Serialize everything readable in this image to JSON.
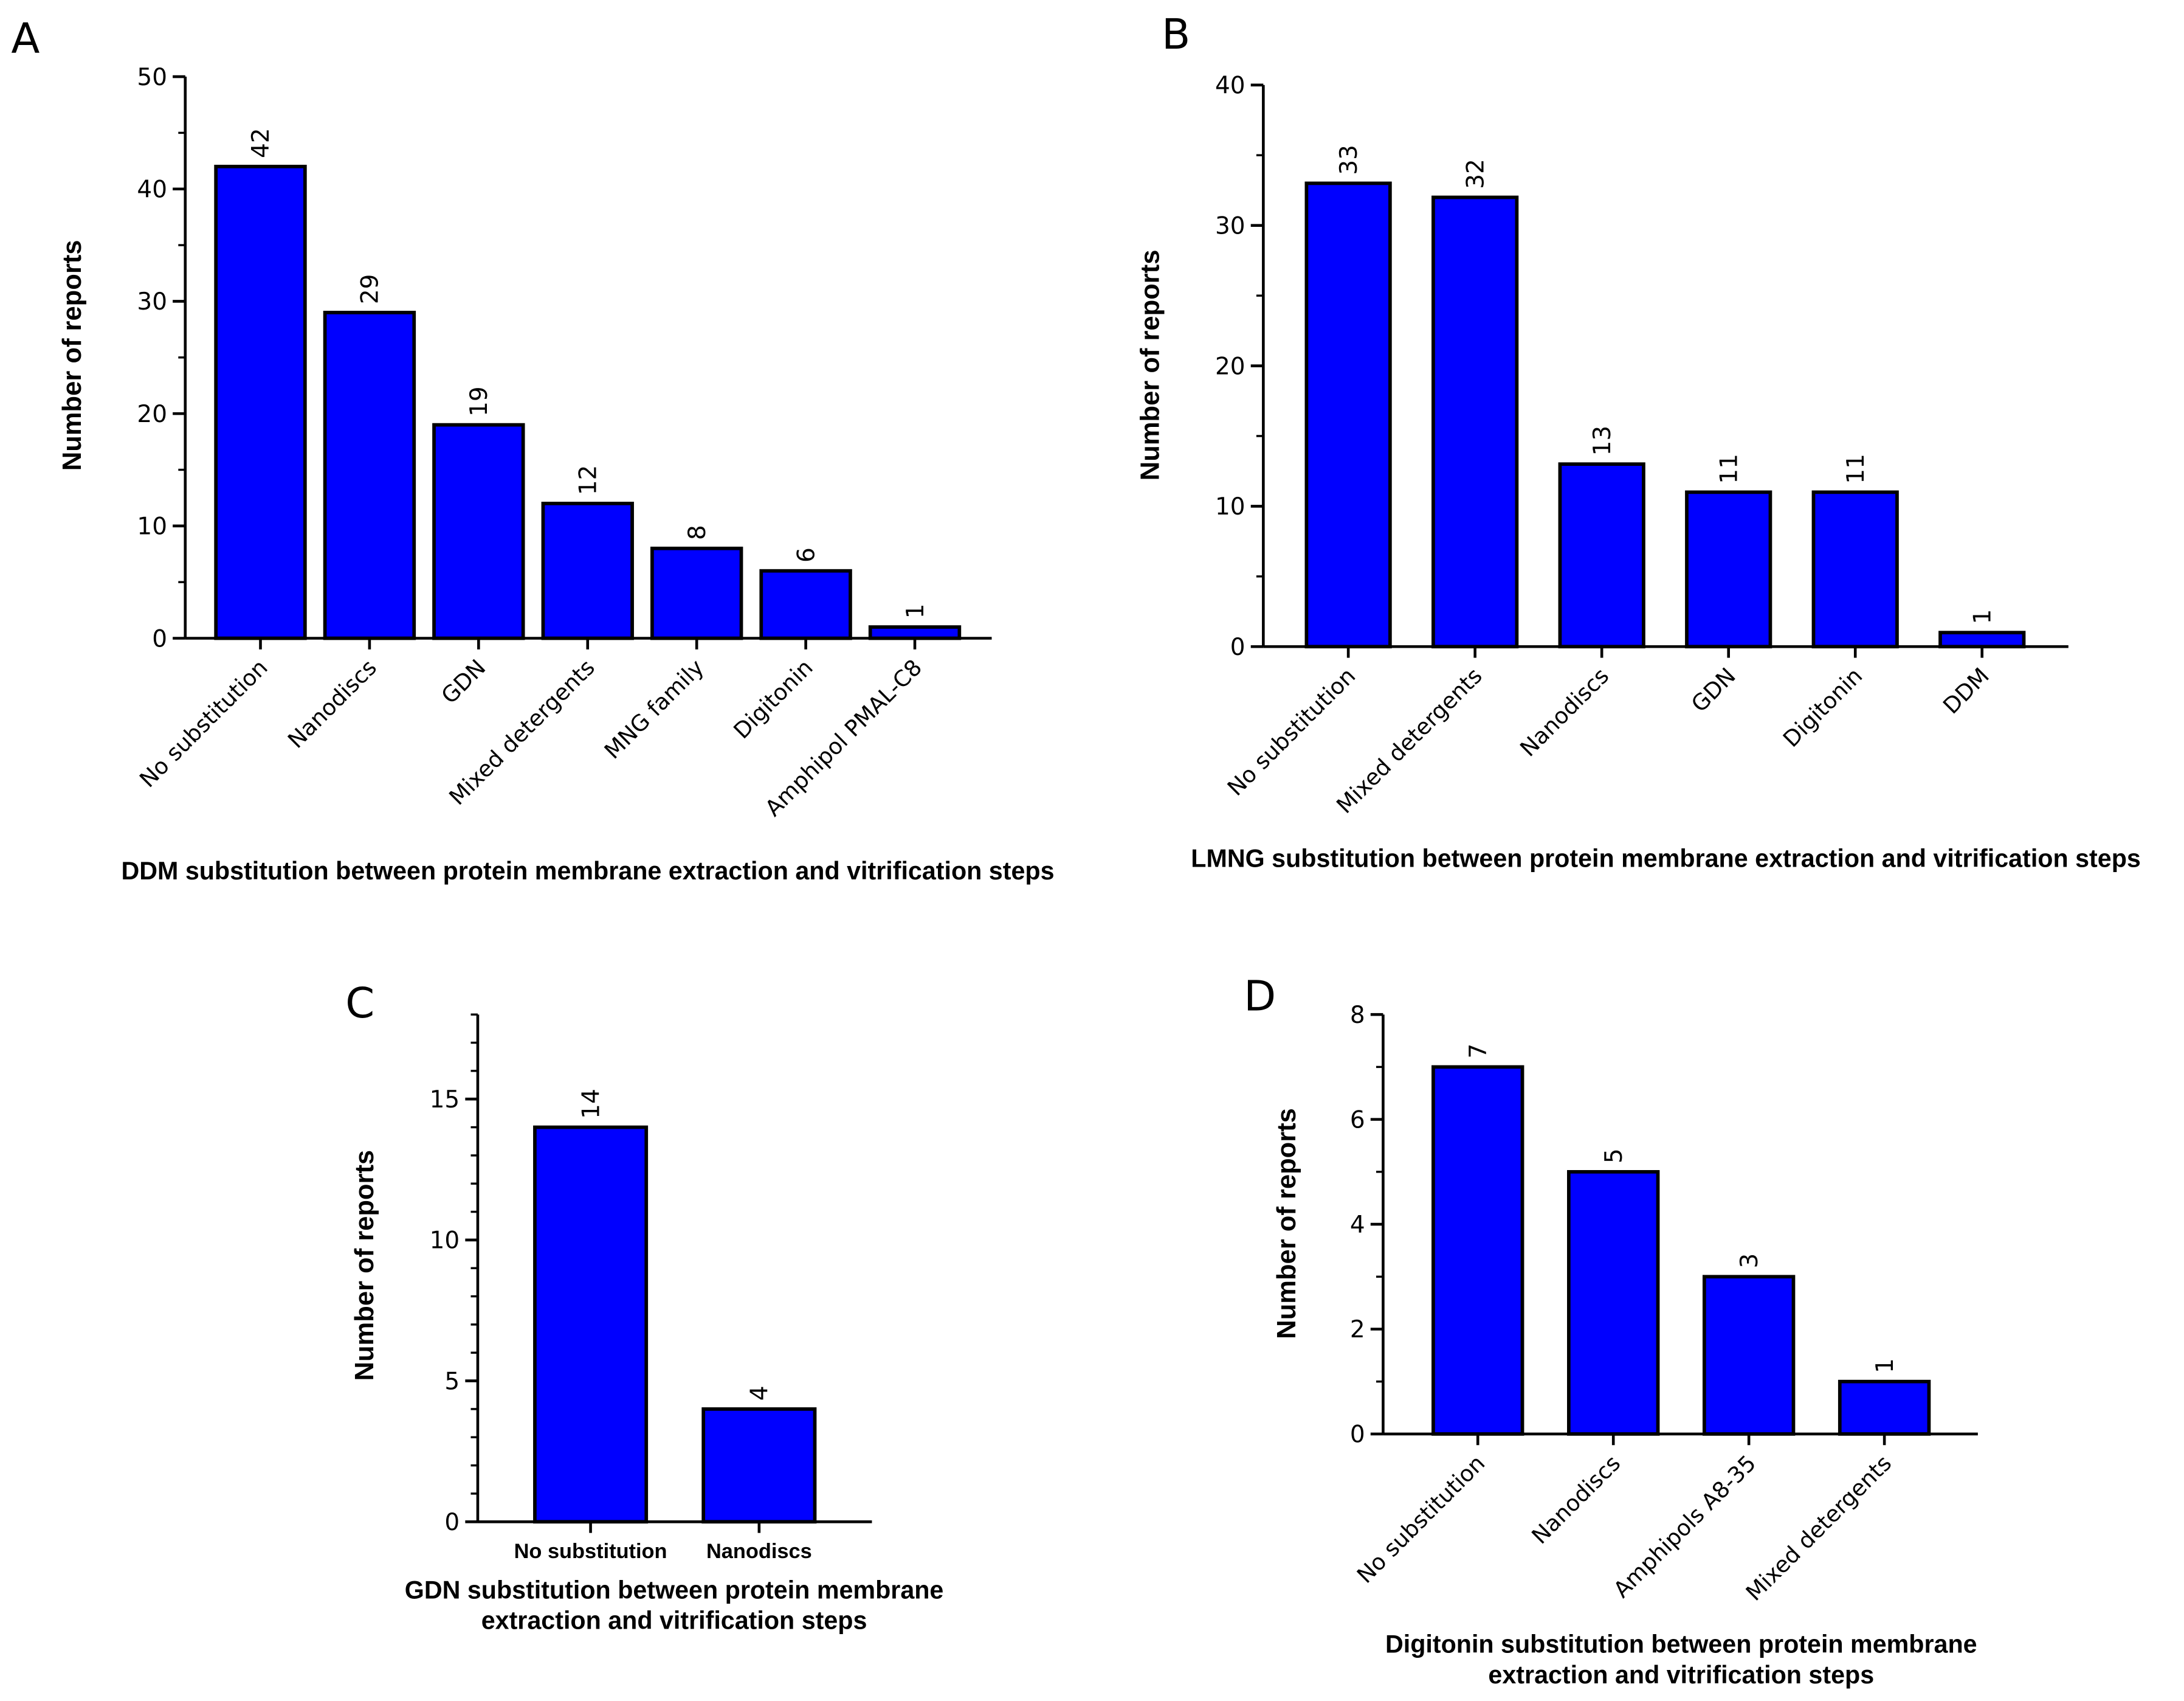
{
  "chart_data": [
    {
      "type": "bar",
      "panel": "A",
      "categories": [
        "No substitution",
        "Nanodiscs",
        "GDN",
        "Mixed detergents",
        "MNG family",
        "Digitonin",
        "Amphipol PMAL-C8"
      ],
      "values": [
        42,
        29,
        19,
        12,
        8,
        6,
        1
      ],
      "color": "#0000ff",
      "ylim": [
        0,
        50
      ],
      "yticks": [
        0,
        10,
        20,
        30,
        40,
        50
      ],
      "minor_yticks": [
        5,
        15,
        25,
        35,
        45
      ],
      "ylabel": "Number of reports",
      "xlabel": [
        "DDM substitution between protein membrane extraction and vitrification steps"
      ]
    },
    {
      "type": "bar",
      "panel": "B",
      "categories": [
        "No substitution",
        "Mixed detergents",
        "Nanodiscs",
        "GDN",
        "Digitonin",
        "DDM"
      ],
      "values": [
        33,
        32,
        13,
        11,
        11,
        1
      ],
      "color": "#0000ff",
      "ylim": [
        0,
        40
      ],
      "yticks": [
        0,
        10,
        20,
        30,
        40
      ],
      "minor_yticks": [
        5,
        15,
        25,
        35
      ],
      "ylabel": "Number of reports",
      "xlabel": [
        "LMNG substitution between protein membrane extraction and vitrification steps"
      ]
    },
    {
      "type": "bar",
      "panel": "C",
      "categories": [
        "No substitution",
        "Nanodiscs"
      ],
      "values": [
        14,
        4
      ],
      "color": "#0000ff",
      "ylim": [
        0,
        18
      ],
      "yticks": [
        0,
        5,
        10,
        15
      ],
      "minor_yticks": [
        1,
        2,
        3,
        4,
        6,
        7,
        8,
        9,
        11,
        12,
        13,
        14,
        16,
        17,
        18
      ],
      "ylabel": "Number of reports",
      "xlabel": [
        "GDN substitution between protein membrane",
        "extraction and vitrification steps"
      ]
    },
    {
      "type": "bar",
      "panel": "D",
      "categories": [
        "No substitution",
        "Nanodiscs",
        "Amphipols A8-35",
        "Mixed detergents"
      ],
      "values": [
        7,
        5,
        3,
        1
      ],
      "color": "#0000ff",
      "ylim": [
        0,
        8
      ],
      "yticks": [
        0,
        2,
        4,
        6,
        8
      ],
      "minor_yticks": [
        1,
        3,
        5,
        7
      ],
      "ylabel": "Number of reports",
      "xlabel": [
        "Digitonin substitution between protein membrane",
        "extraction and vitrification steps"
      ]
    }
  ]
}
